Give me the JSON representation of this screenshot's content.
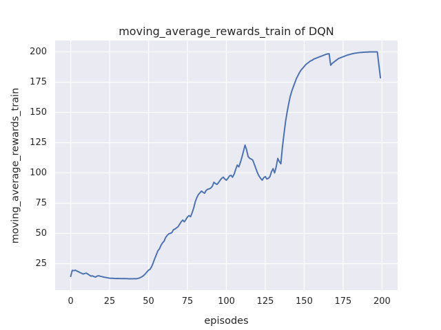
{
  "chart_data": {
    "type": "line",
    "title": "moving_average_rewards_train of DQN",
    "xlabel": "episodes",
    "ylabel": "moving_average_rewards_train",
    "xlim": [
      -10,
      210
    ],
    "ylim": [
      3.125,
      209.375
    ],
    "xticks": [
      0,
      25,
      50,
      75,
      100,
      125,
      150,
      175,
      200
    ],
    "yticks": [
      25,
      50,
      75,
      100,
      125,
      150,
      175,
      200
    ],
    "grid": true,
    "legend": "none",
    "colors": {
      "line": "#4C72B0",
      "axes_background": "#EAEAF2",
      "grid": "#FFFFFF",
      "figure_background": "#FFFFFF",
      "text": "#262626"
    },
    "series": [
      {
        "name": "moving_average_rewards_train",
        "x_start": 0,
        "x_step": 1,
        "values": [
          14.5,
          19.5,
          19.2,
          19.6,
          18.9,
          18.3,
          17.6,
          17.1,
          16.4,
          16.9,
          17.2,
          16.4,
          15.5,
          14.7,
          14.9,
          14.3,
          13.9,
          14.8,
          15.0,
          14.6,
          14.3,
          14.0,
          13.7,
          13.5,
          13.2,
          13.0,
          12.9,
          12.9,
          12.8,
          12.7,
          12.8,
          12.7,
          12.7,
          12.6,
          12.7,
          12.6,
          12.6,
          12.5,
          12.5,
          12.5,
          12.5,
          12.6,
          12.5,
          12.7,
          13.1,
          13.7,
          14.4,
          15.4,
          16.6,
          18.2,
          19.6,
          20.3,
          22.6,
          25.6,
          29.2,
          32.3,
          35.6,
          37.2,
          40.1,
          42.2,
          43.6,
          46.6,
          48.4,
          49.6,
          50.1,
          50.6,
          53.0,
          53.6,
          54.6,
          55.6,
          57.6,
          59.6,
          61.0,
          59.6,
          61.5,
          63.5,
          64.8,
          63.8,
          67.0,
          71.0,
          76.0,
          79.5,
          82.0,
          83.5,
          85.0,
          84.0,
          83.2,
          85.5,
          86.5,
          86.8,
          87.5,
          89.0,
          92.3,
          91.2,
          90.5,
          92.0,
          94.0,
          95.5,
          96.5,
          95.0,
          94.0,
          95.5,
          97.5,
          98.0,
          96.5,
          99.0,
          103.0,
          106.5,
          105.0,
          108.5,
          113.0,
          118.0,
          123.0,
          119.0,
          113.5,
          112.0,
          111.5,
          110.5,
          107.0,
          103.5,
          100.0,
          97.5,
          95.5,
          94.0,
          96.0,
          97.0,
          95.0,
          95.5,
          97.0,
          101.0,
          103.5,
          100.0,
          105.0,
          112.0,
          109.5,
          107.5,
          121.0,
          132.0,
          142.0,
          150.0,
          157.0,
          163.0,
          167.5,
          171.0,
          174.5,
          178.0,
          180.5,
          183.0,
          185.0,
          186.5,
          188.0,
          189.5,
          190.5,
          191.5,
          192.5,
          193.0,
          194.0,
          194.5,
          195.0,
          195.5,
          196.0,
          196.5,
          197.0,
          197.5,
          198.0,
          198.3,
          198.5,
          189.0,
          190.5,
          191.5,
          192.5,
          193.5,
          194.5,
          195.0,
          195.5,
          196.0,
          196.5,
          197.0,
          197.5,
          197.8,
          198.2,
          198.5,
          198.8,
          199.0,
          199.2,
          199.4,
          199.5,
          199.6,
          199.7,
          199.8,
          199.9,
          199.9,
          200.0,
          200.0,
          200.0,
          200.0,
          200.0,
          200.0,
          189.0,
          178.5
        ]
      }
    ]
  }
}
